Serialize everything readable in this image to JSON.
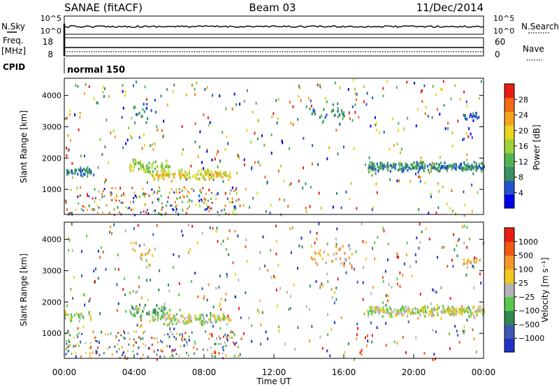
{
  "header": {
    "station": "SANAE (fitACF)",
    "beam": "Beam 03",
    "date": "11/Dec/2014"
  },
  "strip_labels": {
    "nsky": "N.Sky",
    "nsearch": "N.Search",
    "freq": "Freq.",
    "freq_unit": "[MHz]",
    "nave": "Nave",
    "cpid": "CPID",
    "cpid_value": "normal 150",
    "nsky_ticks": [
      "10^5",
      "10^0"
    ],
    "nsearch_ticks": [
      "10^5",
      "10^0"
    ],
    "freq_ticks": [
      "18",
      "8"
    ],
    "nave_ticks": [
      "60",
      "0"
    ]
  },
  "colors": {
    "power": [
      "#0000ee",
      "#2255cc",
      "#3a8f64",
      "#52b552",
      "#9ed23a",
      "#e8d61e",
      "#f5a31e",
      "#f56a14",
      "#e81e14"
    ],
    "velocity": [
      "#1e32c8",
      "#3c5ab4",
      "#2e8a50",
      "#5ac84a",
      "#b4b4b4",
      "#f0c81e",
      "#f59628",
      "#f05a14",
      "#e81e14"
    ]
  },
  "chart_data": [
    {
      "type": "heatmap",
      "name": "power",
      "xlabel": "",
      "ylabel": "Slant Range [km]",
      "x_range_hours": [
        0,
        24
      ],
      "y_range_km": [
        200,
        4550
      ],
      "yticks": [
        "1000",
        "2000",
        "3000",
        "4000"
      ],
      "colorbar_label": "Power [dB]",
      "colorbar_ticks": [
        "28",
        "24",
        "20",
        "16",
        "12",
        "8",
        "4"
      ],
      "colorbar_range": [
        0,
        32
      ],
      "echo_regions": [
        {
          "t0": 0.0,
          "t1": 1.5,
          "r_center": 1600,
          "r_width": 180,
          "density": 0.55,
          "level": 2
        },
        {
          "t0": 3.7,
          "t1": 6.0,
          "r_center": 1750,
          "r_width": 250,
          "density": 0.45,
          "level": 4
        },
        {
          "t0": 5.0,
          "t1": 9.5,
          "r_center": 1500,
          "r_width": 200,
          "density": 0.45,
          "level": 5
        },
        {
          "t0": 17.3,
          "t1": 24.0,
          "r_center": 1750,
          "r_width": 180,
          "density": 0.6,
          "level": 2
        },
        {
          "t0": 14.0,
          "t1": 16.5,
          "r_center": 3500,
          "r_width": 450,
          "density": 0.22,
          "level": 2
        },
        {
          "t0": 3.8,
          "t1": 5.2,
          "r_center": 3600,
          "r_width": 500,
          "density": 0.2,
          "level": 2
        },
        {
          "t0": 22.8,
          "t1": 23.8,
          "r_center": 3350,
          "r_width": 150,
          "density": 0.3,
          "level": 1
        }
      ]
    },
    {
      "type": "heatmap",
      "name": "velocity",
      "xlabel": "Time UT",
      "ylabel": "Slant Range [km]",
      "x_range_hours": [
        0,
        24
      ],
      "y_range_km": [
        200,
        4550
      ],
      "xticks": [
        "00:00",
        "04:00",
        "08:00",
        "12:00",
        "16:00",
        "20:00",
        "00:00"
      ],
      "yticks": [
        "1000",
        "2000",
        "3000",
        "4000"
      ],
      "colorbar_label": "Velocity [m s⁻¹]",
      "colorbar_ticks": [
        "1000",
        "500",
        "100",
        "25",
        "−25",
        "−100",
        "−500",
        "−1000"
      ],
      "echo_regions": [
        {
          "t0": 0.0,
          "t1": 1.5,
          "r_center": 1600,
          "r_width": 180,
          "density": 0.3,
          "level": 4
        },
        {
          "t0": 3.7,
          "t1": 6.0,
          "r_center": 1750,
          "r_width": 250,
          "density": 0.45,
          "level": 3
        },
        {
          "t0": 5.0,
          "t1": 9.5,
          "r_center": 1500,
          "r_width": 200,
          "density": 0.45,
          "level": 4
        },
        {
          "t0": 17.3,
          "t1": 24.0,
          "r_center": 1750,
          "r_width": 180,
          "density": 0.6,
          "level": 4
        },
        {
          "t0": 14.0,
          "t1": 16.5,
          "r_center": 3500,
          "r_width": 450,
          "density": 0.22,
          "level": 5
        },
        {
          "t0": 3.8,
          "t1": 5.2,
          "r_center": 3600,
          "r_width": 500,
          "density": 0.2,
          "level": 5
        },
        {
          "t0": 22.8,
          "t1": 23.8,
          "r_center": 3350,
          "r_width": 150,
          "density": 0.3,
          "level": 5
        }
      ]
    }
  ]
}
